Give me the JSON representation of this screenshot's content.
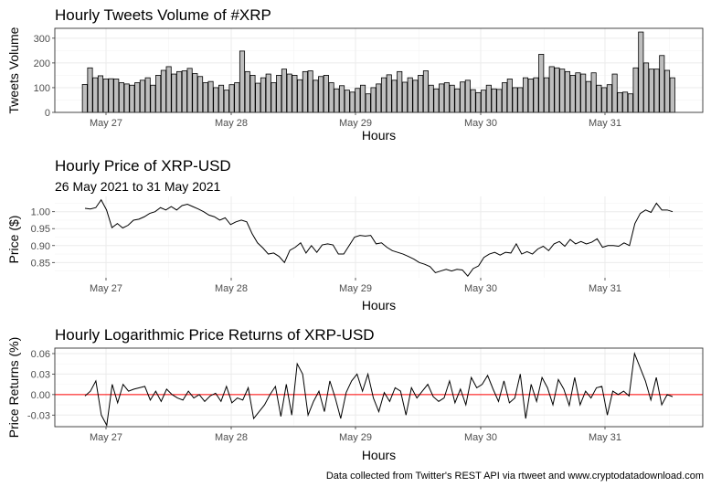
{
  "caption": "Data collected from Twitter's REST API via rtweet and www.cryptodatadownload.com",
  "chart_data": [
    {
      "type": "bar",
      "title": "Hourly Tweets Volume of #XRP",
      "xlabel": "Hours",
      "ylabel": "Tweets Volume",
      "x_tick_labels": [
        "May 27",
        "May 28",
        "May 29",
        "May 30",
        "May 31"
      ],
      "y_ticks": [
        0,
        100,
        200,
        300
      ],
      "ylim": [
        0,
        340
      ],
      "bar_fill": "#bebebe",
      "bar_stroke": "#000000",
      "grid": true,
      "values": [
        113,
        180,
        140,
        148,
        135,
        136,
        135,
        120,
        115,
        110,
        120,
        130,
        140,
        110,
        150,
        170,
        185,
        155,
        165,
        168,
        178,
        157,
        145,
        120,
        125,
        100,
        110,
        90,
        112,
        120,
        248,
        165,
        150,
        118,
        140,
        155,
        120,
        150,
        175,
        155,
        150,
        132,
        165,
        168,
        130,
        145,
        150,
        120,
        95,
        108,
        90,
        82,
        97,
        110,
        75,
        100,
        115,
        140,
        152,
        130,
        165,
        122,
        140,
        130,
        150,
        168,
        110,
        95,
        115,
        120,
        110,
        95,
        123,
        130,
        92,
        80,
        90,
        110,
        95,
        93,
        120,
        135,
        100,
        100,
        140,
        135,
        140,
        235,
        140,
        185,
        180,
        175,
        165,
        150,
        160,
        155,
        125,
        160,
        110,
        100,
        112,
        155,
        80,
        82,
        75,
        180,
        325,
        200,
        175,
        175,
        230,
        170,
        140
      ]
    },
    {
      "type": "line",
      "title": "Hourly Price of XRP-USD",
      "subtitle": "26 May 2021 to 31 May 2021",
      "xlabel": "Hours",
      "ylabel": "Price ($)",
      "x_tick_labels": [
        "May 27",
        "May 28",
        "May 29",
        "May 30",
        "May 31"
      ],
      "y_ticks": [
        0.85,
        0.9,
        0.95,
        1.0
      ],
      "y_tick_labels": [
        "0.85",
        "0.90",
        "0.95",
        "1.00"
      ],
      "ylim": [
        0.805,
        1.045
      ],
      "line_color": "#000000",
      "grid": true,
      "values": [
        1.01,
        1.008,
        1.012,
        1.035,
        1.005,
        0.953,
        0.965,
        0.952,
        0.96,
        0.975,
        0.978,
        0.985,
        0.995,
        1.0,
        1.012,
        1.005,
        1.015,
        1.005,
        1.018,
        1.022,
        1.015,
        1.008,
        1.0,
        0.99,
        0.985,
        0.975,
        0.982,
        0.962,
        0.97,
        0.975,
        0.97,
        0.935,
        0.908,
        0.893,
        0.875,
        0.878,
        0.868,
        0.85,
        0.886,
        0.895,
        0.908,
        0.878,
        0.9,
        0.88,
        0.902,
        0.905,
        0.902,
        0.875,
        0.875,
        0.9,
        0.925,
        0.93,
        0.928,
        0.93,
        0.905,
        0.908,
        0.895,
        0.885,
        0.88,
        0.875,
        0.868,
        0.86,
        0.85,
        0.845,
        0.838,
        0.82,
        0.825,
        0.83,
        0.825,
        0.83,
        0.828,
        0.81,
        0.832,
        0.84,
        0.865,
        0.875,
        0.88,
        0.872,
        0.88,
        0.878,
        0.905,
        0.875,
        0.882,
        0.875,
        0.89,
        0.898,
        0.885,
        0.905,
        0.912,
        0.898,
        0.918,
        0.905,
        0.912,
        0.905,
        0.91,
        0.92,
        0.895,
        0.9,
        0.9,
        0.898,
        0.908,
        0.9,
        0.965,
        0.995,
        1.005,
        0.998,
        1.025,
        1.005,
        1.005,
        1.0
      ]
    },
    {
      "type": "line",
      "title": "Hourly Logarithmic Price Returns of XRP-USD",
      "xlabel": "Hours",
      "ylabel": "Price Returns (%)",
      "x_tick_labels": [
        "May 27",
        "May 28",
        "May 29",
        "May 30",
        "May 31"
      ],
      "y_ticks": [
        -0.03,
        0.0,
        0.03,
        0.06
      ],
      "y_tick_labels": [
        "-0.03",
        "0.00",
        "0.03",
        "0.06"
      ],
      "ylim": [
        -0.047,
        0.068
      ],
      "line_color": "#000000",
      "reference_line": {
        "y": 0,
        "color": "#ff0000"
      },
      "grid": true,
      "values": [
        -0.002,
        0.005,
        0.02,
        -0.03,
        -0.045,
        0.015,
        -0.012,
        0.015,
        0.005,
        0.008,
        0.01,
        0.012,
        -0.008,
        0.005,
        -0.01,
        0.008,
        0.0,
        -0.005,
        -0.008,
        0.005,
        -0.005,
        0.0,
        -0.01,
        -0.002,
        0.002,
        -0.01,
        0.012,
        -0.012,
        -0.005,
        -0.008,
        0.01,
        -0.035,
        -0.025,
        -0.015,
        0.0,
        0.012,
        -0.032,
        0.015,
        -0.03,
        0.045,
        0.03,
        -0.03,
        -0.01,
        0.005,
        -0.025,
        0.02,
        -0.005,
        -0.035,
        0.003,
        0.02,
        0.03,
        0.005,
        0.03,
        -0.005,
        -0.025,
        0.003,
        -0.01,
        0.01,
        0.005,
        -0.03,
        0.01,
        -0.005,
        0.005,
        0.015,
        -0.003,
        -0.01,
        -0.005,
        0.02,
        -0.012,
        0.008,
        -0.015,
        0.025,
        0.01,
        0.015,
        0.028,
        0.008,
        -0.01,
        0.02,
        -0.012,
        -0.005,
        0.03,
        -0.035,
        0.015,
        -0.01,
        0.025,
        0.01,
        -0.015,
        0.022,
        0.008,
        -0.016,
        0.025,
        -0.015,
        0.005,
        -0.005,
        0.01,
        0.012,
        -0.03,
        0.005,
        0.0,
        0.005,
        -0.002,
        0.06,
        0.04,
        0.02,
        -0.008,
        0.025,
        -0.015,
        0.0,
        -0.003
      ]
    }
  ]
}
